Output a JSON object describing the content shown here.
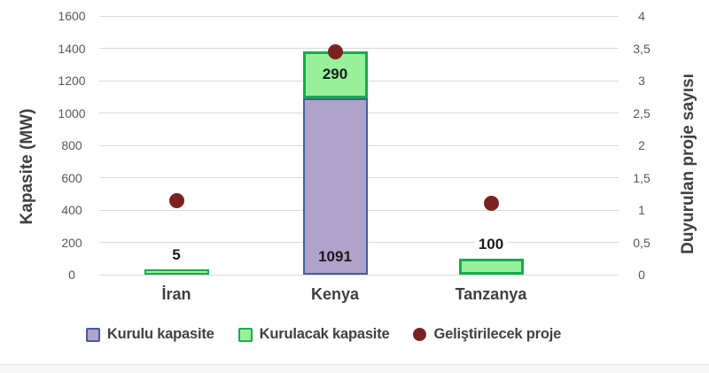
{
  "chart_data": {
    "type": "bar",
    "subtype": "stacked-bars-with-scatter-overlay-dual-axis",
    "title": "",
    "categories": [
      "İran",
      "Kenya",
      "Tanzanya"
    ],
    "series": [
      {
        "name": "Kurulu kapasite",
        "type": "bar",
        "axis": "left",
        "values": [
          0,
          1091,
          0
        ],
        "fill": "#afa3cc",
        "border": "#445e9c"
      },
      {
        "name": "Kurulacak kapasite",
        "type": "bar",
        "axis": "left",
        "values": [
          5,
          290,
          100
        ],
        "fill": "#99f09b",
        "border": "#15ad4c"
      },
      {
        "name": "Geliştirilecek proje",
        "type": "scatter",
        "axis": "right",
        "values": [
          1.15,
          3.45,
          1.1
        ],
        "color": "#7b2221"
      }
    ],
    "data_labels_shown": [
      "5",
      "1091",
      "290",
      "100"
    ],
    "left_axis": {
      "label": "Kapasite  (MW)",
      "min": 0,
      "max": 1600,
      "step": 200,
      "ticks": [
        "1600",
        "1400",
        "1200",
        "1000",
        "800",
        "600",
        "400",
        "200",
        "0"
      ]
    },
    "right_axis": {
      "label": "Duyurulan proje sayısı",
      "min": 0,
      "max": 4,
      "step": 0.5,
      "ticks": [
        "4",
        "3,5",
        "3",
        "2,5",
        "2",
        "1,5",
        "1",
        "0,5",
        "0"
      ]
    },
    "grid": true,
    "legend_position": "bottom",
    "colors": {
      "gridline": "#d9d9d9",
      "tick_text": "#595959",
      "label_text": "#404040",
      "bar_value_text": "#1a1a1a",
      "background": "#ffffff"
    }
  }
}
